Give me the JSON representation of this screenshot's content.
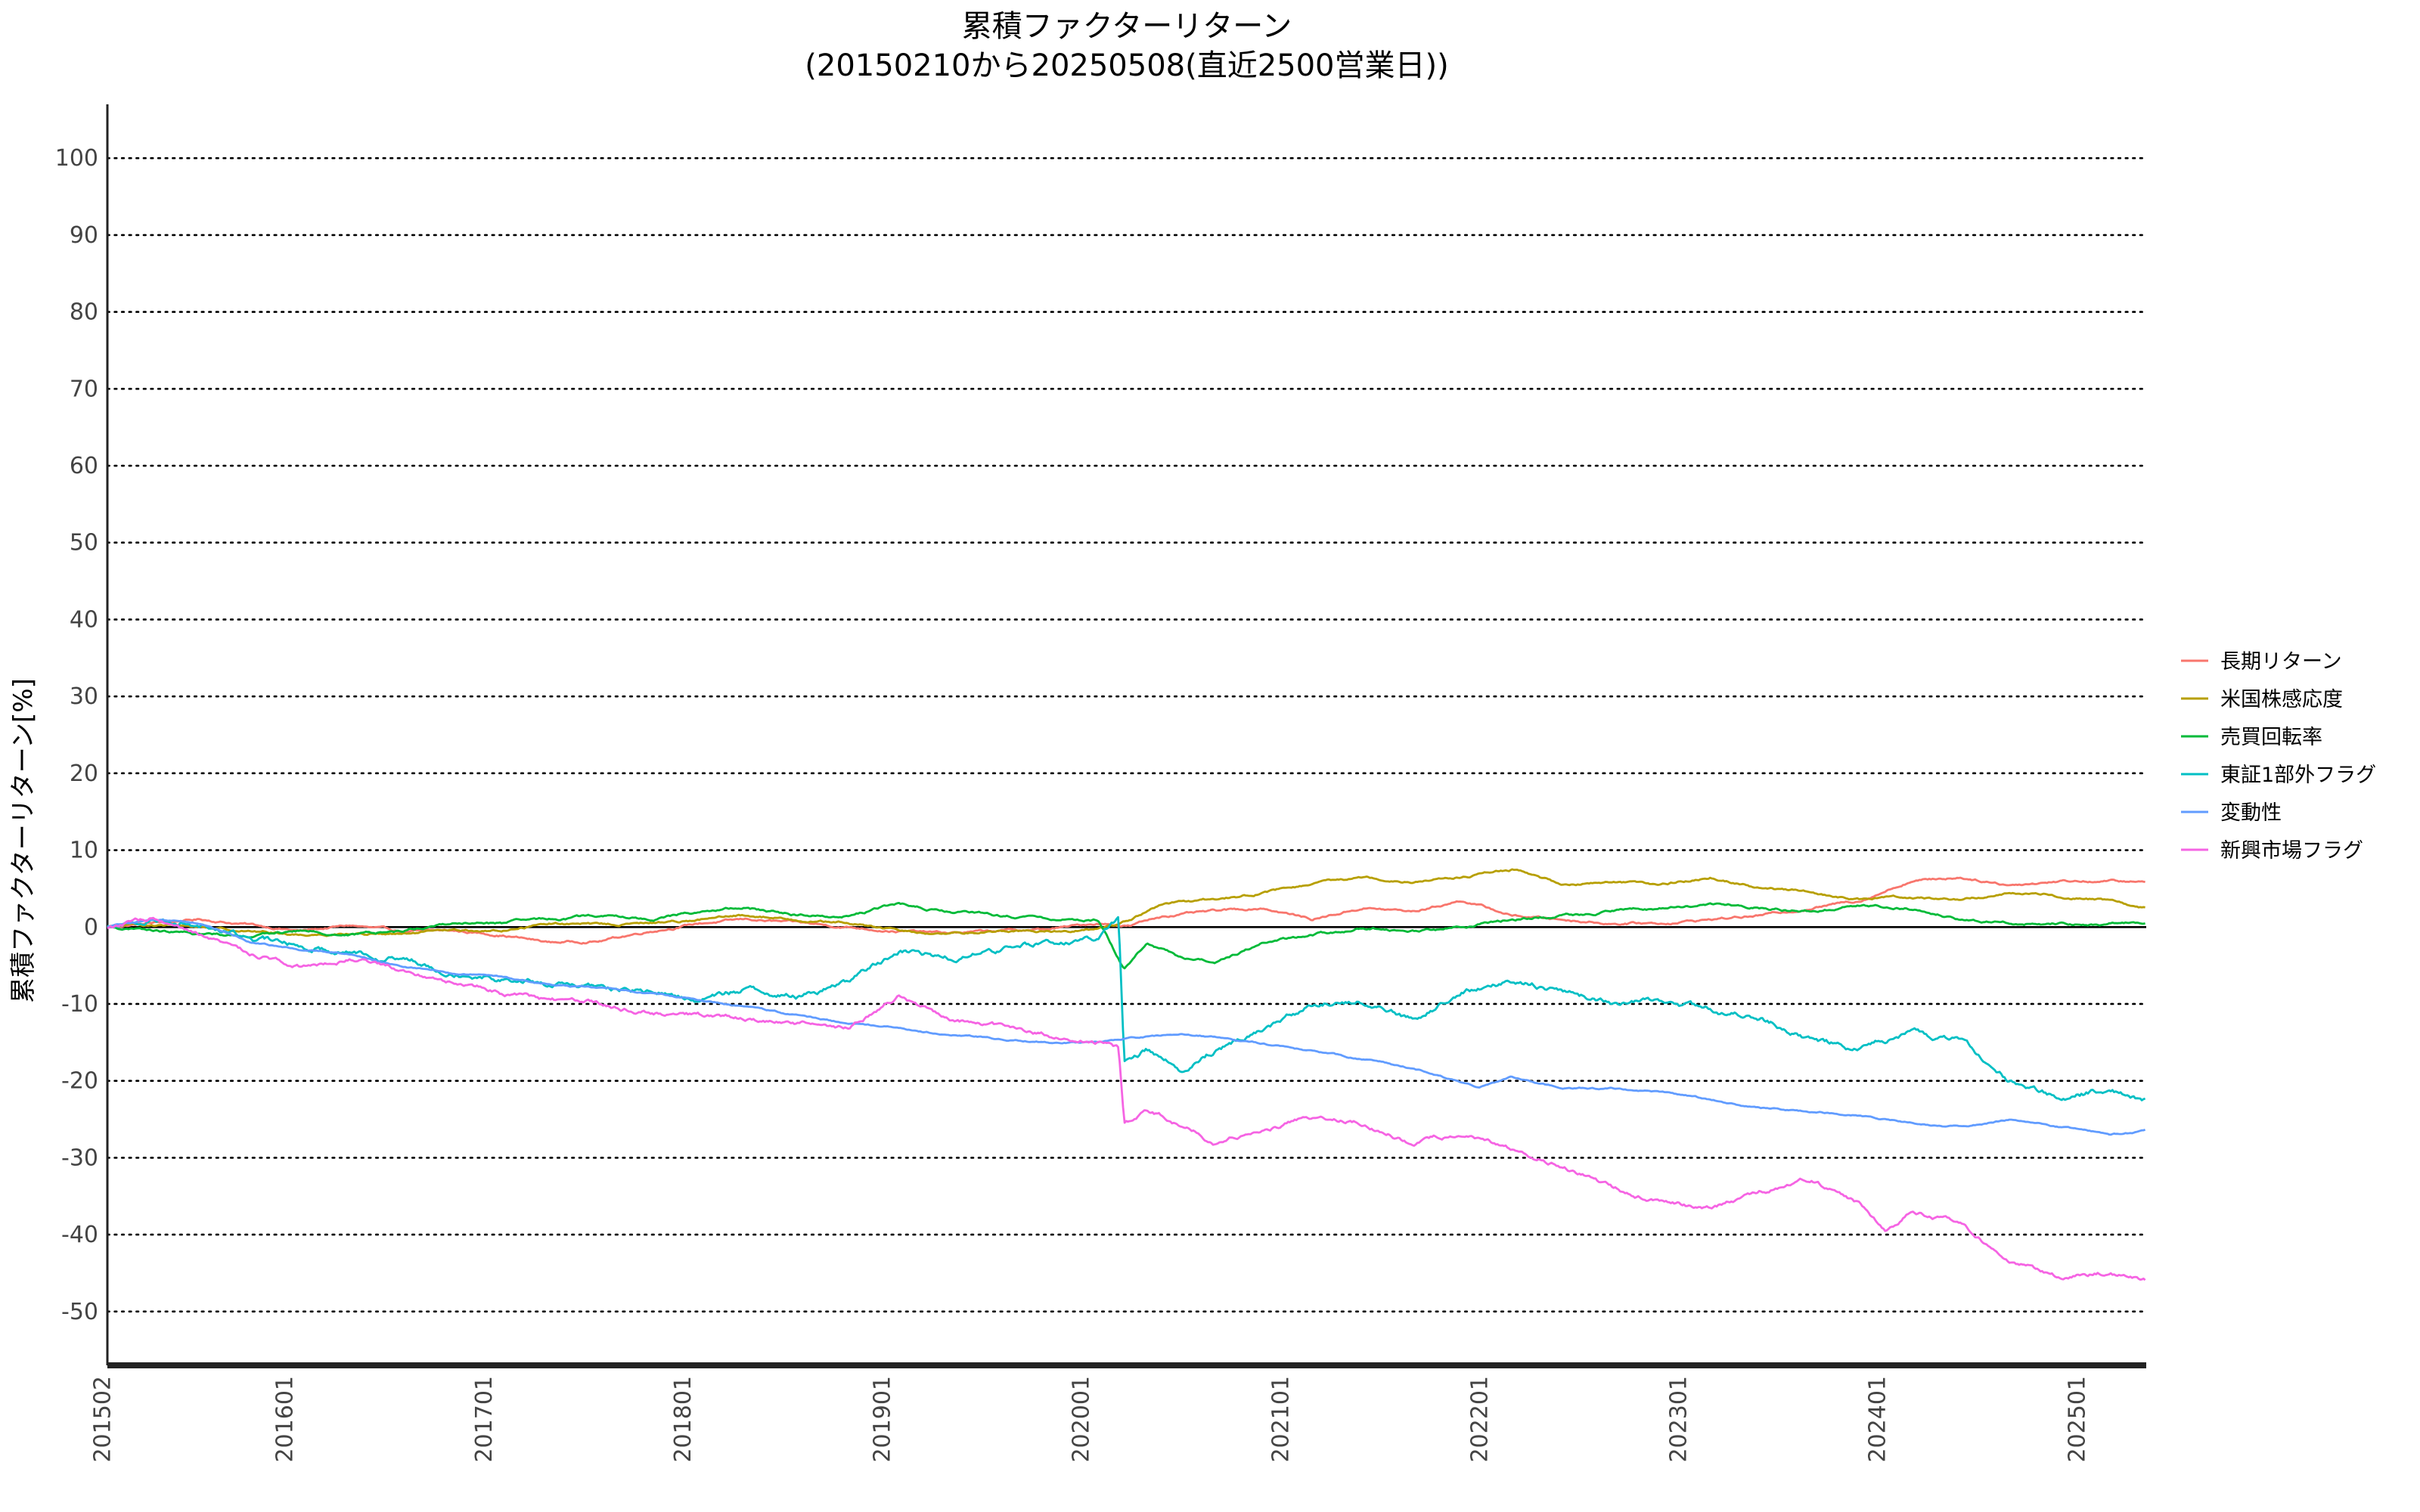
{
  "chart_data": {
    "type": "line",
    "title": "累積ファクターリターン",
    "subtitle": "(20150210から20250508(直近2500営業日))",
    "xlabel": "",
    "ylabel": "累積ファクターリターン[%]",
    "xlim": [
      "2015-02-10",
      "2025-05-08"
    ],
    "ylim": [
      -57,
      107
    ],
    "yticks": [
      100,
      90,
      80,
      70,
      60,
      50,
      40,
      30,
      20,
      10,
      0,
      -10,
      -20,
      -30,
      -40,
      -50
    ],
    "xticks": [
      "201502",
      "201601",
      "201701",
      "201801",
      "201901",
      "202001",
      "202101",
      "202201",
      "202301",
      "202401",
      "202501"
    ],
    "grid": "horizontal dotted",
    "legend_position": "right",
    "series": [
      {
        "name": "長期リターン",
        "color": "#F8766D",
        "points": [
          [
            "2015-02-10",
            0
          ],
          [
            "2015-05-01",
            0.5
          ],
          [
            "2015-08-01",
            1.0
          ],
          [
            "2015-11-01",
            0.3
          ],
          [
            "2016-02-01",
            -0.5
          ],
          [
            "2016-05-01",
            0.2
          ],
          [
            "2016-08-01",
            -0.6
          ],
          [
            "2016-11-01",
            -0.5
          ],
          [
            "2017-02-01",
            -1.0
          ],
          [
            "2017-05-01",
            -2.0
          ],
          [
            "2017-08-01",
            -1.8
          ],
          [
            "2017-11-01",
            -0.5
          ],
          [
            "2018-02-01",
            0.5
          ],
          [
            "2018-05-01",
            1.0
          ],
          [
            "2018-08-01",
            0.5
          ],
          [
            "2018-11-01",
            0.0
          ],
          [
            "2019-02-01",
            -0.5
          ],
          [
            "2019-05-01",
            -0.8
          ],
          [
            "2019-08-01",
            -0.5
          ],
          [
            "2019-11-01",
            -0.3
          ],
          [
            "2020-02-01",
            0.5
          ],
          [
            "2020-04-01",
            0.2
          ],
          [
            "2020-06-01",
            1.5
          ],
          [
            "2020-09-01",
            2.0
          ],
          [
            "2020-12-01",
            2.5
          ],
          [
            "2021-03-01",
            1.0
          ],
          [
            "2021-06-01",
            2.5
          ],
          [
            "2021-09-01",
            2.0
          ],
          [
            "2021-12-01",
            3.5
          ],
          [
            "2022-03-01",
            1.5
          ],
          [
            "2022-06-01",
            1.0
          ],
          [
            "2022-09-01",
            0.5
          ],
          [
            "2022-12-01",
            0.5
          ],
          [
            "2023-03-01",
            1.0
          ],
          [
            "2023-06-01",
            1.5
          ],
          [
            "2023-09-01",
            2.5
          ],
          [
            "2023-12-01",
            3.5
          ],
          [
            "2024-03-01",
            6.0
          ],
          [
            "2024-06-01",
            6.5
          ],
          [
            "2024-09-01",
            5.5
          ],
          [
            "2024-12-01",
            6.0
          ],
          [
            "2025-03-01",
            6.0
          ],
          [
            "2025-05-08",
            5.8
          ]
        ]
      },
      {
        "name": "米国株感応度",
        "color": "#B79F00",
        "points": [
          [
            "2015-02-10",
            0
          ],
          [
            "2015-05-01",
            0.3
          ],
          [
            "2015-08-01",
            0.0
          ],
          [
            "2015-11-01",
            -0.5
          ],
          [
            "2016-02-01",
            -1.0
          ],
          [
            "2016-05-01",
            -0.8
          ],
          [
            "2016-08-01",
            -1.0
          ],
          [
            "2016-11-01",
            -0.5
          ],
          [
            "2017-02-01",
            -0.5
          ],
          [
            "2017-05-01",
            0.5
          ],
          [
            "2017-08-01",
            0.3
          ],
          [
            "2017-11-01",
            0.5
          ],
          [
            "2018-02-01",
            1.0
          ],
          [
            "2018-05-01",
            1.5
          ],
          [
            "2018-08-01",
            1.0
          ],
          [
            "2018-11-01",
            0.5
          ],
          [
            "2019-02-01",
            -0.5
          ],
          [
            "2019-05-01",
            -1.0
          ],
          [
            "2019-08-01",
            -0.5
          ],
          [
            "2019-11-01",
            -0.5
          ],
          [
            "2020-02-01",
            -0.3
          ],
          [
            "2020-04-01",
            1.0
          ],
          [
            "2020-06-01",
            3.0
          ],
          [
            "2020-09-01",
            3.5
          ],
          [
            "2020-12-01",
            4.5
          ],
          [
            "2021-03-01",
            5.5
          ],
          [
            "2021-06-01",
            6.5
          ],
          [
            "2021-09-01",
            6.0
          ],
          [
            "2021-12-01",
            6.5
          ],
          [
            "2022-03-01",
            7.5
          ],
          [
            "2022-06-01",
            5.5
          ],
          [
            "2022-09-01",
            6.0
          ],
          [
            "2022-12-01",
            5.5
          ],
          [
            "2023-03-01",
            6.5
          ],
          [
            "2023-06-01",
            5.0
          ],
          [
            "2023-09-01",
            4.5
          ],
          [
            "2023-12-01",
            3.5
          ],
          [
            "2024-03-01",
            4.0
          ],
          [
            "2024-06-01",
            3.5
          ],
          [
            "2024-09-01",
            4.5
          ],
          [
            "2024-12-01",
            4.0
          ],
          [
            "2025-03-01",
            3.5
          ],
          [
            "2025-05-08",
            2.5
          ]
        ]
      },
      {
        "name": "売買回転率",
        "color": "#00BA38",
        "points": [
          [
            "2015-02-10",
            0
          ],
          [
            "2015-05-01",
            -0.5
          ],
          [
            "2015-08-01",
            -1.0
          ],
          [
            "2015-11-01",
            -1.0
          ],
          [
            "2016-02-01",
            -0.5
          ],
          [
            "2016-05-01",
            -1.0
          ],
          [
            "2016-08-01",
            -0.5
          ],
          [
            "2016-11-01",
            0.5
          ],
          [
            "2017-02-01",
            0.5
          ],
          [
            "2017-05-01",
            1.0
          ],
          [
            "2017-08-01",
            1.5
          ],
          [
            "2017-11-01",
            1.0
          ],
          [
            "2018-02-01",
            2.0
          ],
          [
            "2018-05-01",
            2.5
          ],
          [
            "2018-08-01",
            1.5
          ],
          [
            "2018-11-01",
            1.5
          ],
          [
            "2019-02-01",
            3.0
          ],
          [
            "2019-05-01",
            2.0
          ],
          [
            "2019-08-01",
            1.5
          ],
          [
            "2019-11-01",
            1.0
          ],
          [
            "2020-02-01",
            1.0
          ],
          [
            "2020-03-20",
            -5.5
          ],
          [
            "2020-05-01",
            -2.0
          ],
          [
            "2020-07-01",
            -4.0
          ],
          [
            "2020-09-01",
            -4.5
          ],
          [
            "2020-12-01",
            -2.0
          ],
          [
            "2021-03-01",
            -1.0
          ],
          [
            "2021-06-01",
            0.0
          ],
          [
            "2021-09-01",
            -0.5
          ],
          [
            "2021-12-01",
            0.0
          ],
          [
            "2022-03-01",
            1.0
          ],
          [
            "2022-06-01",
            1.5
          ],
          [
            "2022-09-01",
            2.0
          ],
          [
            "2022-12-01",
            2.5
          ],
          [
            "2023-03-01",
            3.0
          ],
          [
            "2023-06-01",
            2.5
          ],
          [
            "2023-09-01",
            2.0
          ],
          [
            "2023-12-01",
            3.0
          ],
          [
            "2024-03-01",
            2.5
          ],
          [
            "2024-06-01",
            1.0
          ],
          [
            "2024-09-01",
            0.5
          ],
          [
            "2024-12-01",
            0.5
          ],
          [
            "2025-03-01",
            0.5
          ],
          [
            "2025-05-08",
            0.5
          ]
        ]
      },
      {
        "name": "東証1部外フラグ",
        "color": "#00BFC4",
        "points": [
          [
            "2015-02-10",
            0
          ],
          [
            "2015-05-01",
            1.0
          ],
          [
            "2015-08-01",
            0.5
          ],
          [
            "2015-11-01",
            -1.5
          ],
          [
            "2016-02-01",
            -2.5
          ],
          [
            "2016-05-01",
            -3.0
          ],
          [
            "2016-08-01",
            -4.0
          ],
          [
            "2016-11-01",
            -5.5
          ],
          [
            "2017-02-01",
            -6.5
          ],
          [
            "2017-05-01",
            -7.5
          ],
          [
            "2017-08-01",
            -8.0
          ],
          [
            "2017-11-01",
            -8.5
          ],
          [
            "2018-02-01",
            -9.5
          ],
          [
            "2018-05-01",
            -8.0
          ],
          [
            "2018-08-01",
            -9.0
          ],
          [
            "2018-11-01",
            -7.0
          ],
          [
            "2019-02-01",
            -3.0
          ],
          [
            "2019-05-01",
            -4.0
          ],
          [
            "2019-08-01",
            -3.0
          ],
          [
            "2019-11-01",
            -2.0
          ],
          [
            "2020-02-01",
            -1.5
          ],
          [
            "2020-03-10",
            1.0
          ],
          [
            "2020-03-20",
            -18.0
          ],
          [
            "2020-05-01",
            -16.0
          ],
          [
            "2020-07-01",
            -18.5
          ],
          [
            "2020-09-01",
            -16.0
          ],
          [
            "2020-12-01",
            -13.0
          ],
          [
            "2021-03-01",
            -10.0
          ],
          [
            "2021-06-01",
            -9.5
          ],
          [
            "2021-09-01",
            -12.0
          ],
          [
            "2021-12-01",
            -8.5
          ],
          [
            "2022-03-01",
            -7.0
          ],
          [
            "2022-06-01",
            -8.0
          ],
          [
            "2022-09-01",
            -10.0
          ],
          [
            "2022-12-01",
            -9.5
          ],
          [
            "2023-03-01",
            -11.0
          ],
          [
            "2023-06-01",
            -12.0
          ],
          [
            "2023-09-01",
            -14.5
          ],
          [
            "2023-12-01",
            -16.0
          ],
          [
            "2024-03-01",
            -14.0
          ],
          [
            "2024-06-01",
            -15.0
          ],
          [
            "2024-09-01",
            -20.0
          ],
          [
            "2024-12-01",
            -22.0
          ],
          [
            "2025-03-01",
            -21.0
          ],
          [
            "2025-05-08",
            -22.5
          ]
        ]
      },
      {
        "name": "変動性",
        "color": "#619CFF",
        "points": [
          [
            "2015-02-10",
            0
          ],
          [
            "2015-05-01",
            1.0
          ],
          [
            "2015-08-01",
            0.5
          ],
          [
            "2015-11-01",
            -2.0
          ],
          [
            "2016-02-01",
            -3.0
          ],
          [
            "2016-05-01",
            -3.5
          ],
          [
            "2016-08-01",
            -5.0
          ],
          [
            "2016-11-01",
            -6.0
          ],
          [
            "2017-02-01",
            -6.5
          ],
          [
            "2017-05-01",
            -7.5
          ],
          [
            "2017-08-01",
            -8.0
          ],
          [
            "2017-11-01",
            -8.5
          ],
          [
            "2018-02-01",
            -9.5
          ],
          [
            "2018-05-01",
            -10.5
          ],
          [
            "2018-08-01",
            -11.5
          ],
          [
            "2018-11-01",
            -12.5
          ],
          [
            "2019-02-01",
            -13.0
          ],
          [
            "2019-05-01",
            -14.0
          ],
          [
            "2019-08-01",
            -14.5
          ],
          [
            "2019-11-01",
            -15.0
          ],
          [
            "2020-02-01",
            -15.0
          ],
          [
            "2020-04-01",
            -14.5
          ],
          [
            "2020-07-01",
            -14.0
          ],
          [
            "2020-10-01",
            -14.5
          ],
          [
            "2021-01-01",
            -15.5
          ],
          [
            "2021-04-01",
            -16.5
          ],
          [
            "2021-07-01",
            -17.5
          ],
          [
            "2021-10-01",
            -19.0
          ],
          [
            "2022-01-01",
            -21.0
          ],
          [
            "2022-03-01",
            -19.5
          ],
          [
            "2022-06-01",
            -21.0
          ],
          [
            "2022-09-01",
            -21.0
          ],
          [
            "2022-12-01",
            -21.5
          ],
          [
            "2023-03-01",
            -22.5
          ],
          [
            "2023-06-01",
            -23.5
          ],
          [
            "2023-09-01",
            -24.0
          ],
          [
            "2023-12-01",
            -24.5
          ],
          [
            "2024-03-01",
            -25.5
          ],
          [
            "2024-06-01",
            -26.0
          ],
          [
            "2024-09-01",
            -25.0
          ],
          [
            "2024-12-01",
            -26.0
          ],
          [
            "2025-03-01",
            -27.0
          ],
          [
            "2025-05-08",
            -26.5
          ]
        ]
      },
      {
        "name": "新興市場フラグ",
        "color": "#F564E3",
        "points": [
          [
            "2015-02-10",
            0
          ],
          [
            "2015-05-01",
            1.0
          ],
          [
            "2015-08-01",
            -1.5
          ],
          [
            "2015-11-01",
            -3.5
          ],
          [
            "2016-02-01",
            -5.0
          ],
          [
            "2016-05-01",
            -4.0
          ],
          [
            "2016-08-01",
            -5.5
          ],
          [
            "2016-11-01",
            -7.0
          ],
          [
            "2017-02-01",
            -8.5
          ],
          [
            "2017-05-01",
            -9.5
          ],
          [
            "2017-08-01",
            -10.0
          ],
          [
            "2017-11-01",
            -11.0
          ],
          [
            "2018-02-01",
            -11.5
          ],
          [
            "2018-05-01",
            -12.0
          ],
          [
            "2018-08-01",
            -12.5
          ],
          [
            "2018-11-01",
            -13.0
          ],
          [
            "2019-02-01",
            -9.0
          ],
          [
            "2019-05-01",
            -12.0
          ],
          [
            "2019-08-01",
            -13.0
          ],
          [
            "2019-11-01",
            -14.0
          ],
          [
            "2020-02-01",
            -15.0
          ],
          [
            "2020-03-10",
            -16.0
          ],
          [
            "2020-03-20",
            -26.0
          ],
          [
            "2020-05-01",
            -24.0
          ],
          [
            "2020-07-01",
            -25.5
          ],
          [
            "2020-09-01",
            -28.0
          ],
          [
            "2020-12-01",
            -26.0
          ],
          [
            "2021-03-01",
            -25.0
          ],
          [
            "2021-06-01",
            -25.5
          ],
          [
            "2021-09-01",
            -28.0
          ],
          [
            "2021-12-01",
            -27.0
          ],
          [
            "2022-03-01",
            -29.0
          ],
          [
            "2022-06-01",
            -31.0
          ],
          [
            "2022-09-01",
            -34.0
          ],
          [
            "2022-12-01",
            -36.0
          ],
          [
            "2023-03-01",
            -36.5
          ],
          [
            "2023-06-01",
            -34.5
          ],
          [
            "2023-09-01",
            -33.0
          ],
          [
            "2023-12-01",
            -36.0
          ],
          [
            "2024-01-15",
            -39.5
          ],
          [
            "2024-03-01",
            -37.0
          ],
          [
            "2024-06-01",
            -38.5
          ],
          [
            "2024-09-01",
            -43.5
          ],
          [
            "2024-12-01",
            -45.5
          ],
          [
            "2025-03-01",
            -45.0
          ],
          [
            "2025-05-08",
            -46.0
          ]
        ]
      }
    ]
  }
}
